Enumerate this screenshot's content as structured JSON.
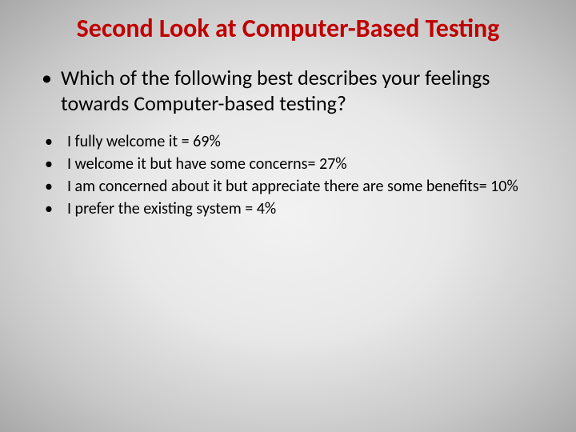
{
  "slide": {
    "title": "Second Look at Computer-Based Testing",
    "title_color": "#c00000",
    "title_fontsize": 32,
    "question": {
      "text": "Which of the following best describes your feelings towards Computer-based testing?",
      "fontsize": 26,
      "color": "#000000",
      "bullet": "•"
    },
    "answers": {
      "fontsize": 20,
      "color": "#000000",
      "bullet": "•",
      "items": [
        "I fully welcome it = 69%",
        "I welcome it but have some concerns= 27%",
        "I am concerned about it but appreciate there are some benefits= 10%",
        "I prefer the existing system = 4%"
      ]
    },
    "background": {
      "type": "radial-gradient",
      "center_color": "#f2f2f2",
      "edge_color": "#a8a8a8"
    }
  }
}
